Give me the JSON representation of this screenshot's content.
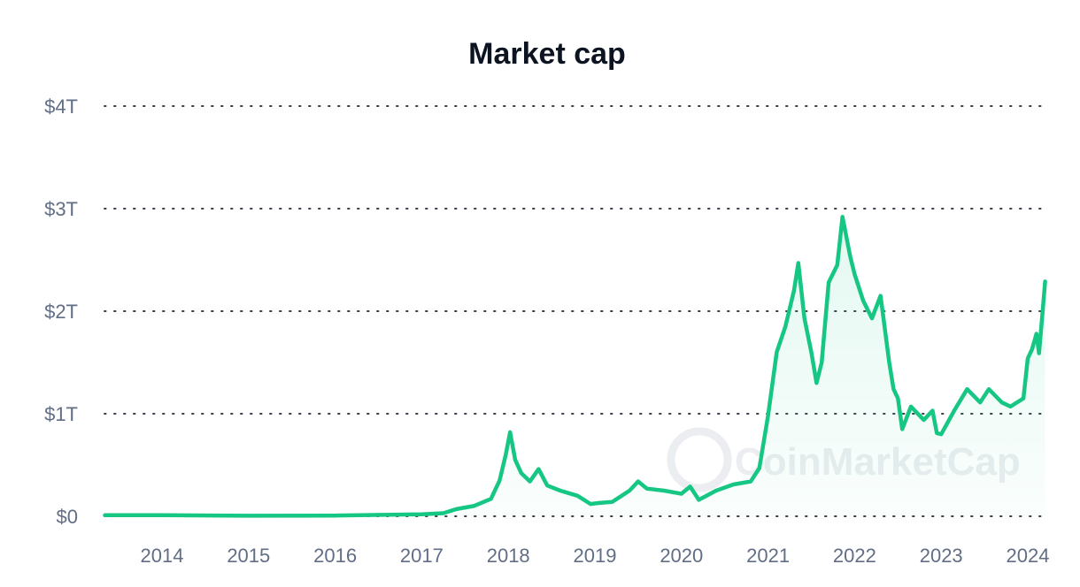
{
  "chart_data": {
    "type": "area",
    "title": "Market cap",
    "xlabel": "",
    "ylabel": "",
    "ylim": [
      0,
      4
    ],
    "y_unit": "trillion USD",
    "y_ticks": [
      {
        "value": 0,
        "label": "$0"
      },
      {
        "value": 1,
        "label": "$1T"
      },
      {
        "value": 2,
        "label": "$2T"
      },
      {
        "value": 3,
        "label": "$3T"
      },
      {
        "value": 4,
        "label": "$4T"
      }
    ],
    "x_ticks": [
      "2014",
      "2015",
      "2016",
      "2017",
      "2018",
      "2019",
      "2020",
      "2021",
      "2022",
      "2023",
      "2024"
    ],
    "xlim": [
      2013.34,
      2024.2
    ],
    "grid": true,
    "watermark": "CoinMarketCap",
    "line_color": "#16c784",
    "series": [
      {
        "name": "Market cap",
        "x": [
          2013.34,
          2014.0,
          2015.0,
          2016.0,
          2017.0,
          2017.25,
          2017.4,
          2017.6,
          2017.8,
          2017.9,
          2017.97,
          2018.02,
          2018.08,
          2018.15,
          2018.25,
          2018.35,
          2018.45,
          2018.6,
          2018.8,
          2018.95,
          2019.05,
          2019.2,
          2019.4,
          2019.5,
          2019.6,
          2019.8,
          2020.0,
          2020.1,
          2020.2,
          2020.4,
          2020.6,
          2020.8,
          2020.9,
          2021.0,
          2021.1,
          2021.2,
          2021.3,
          2021.35,
          2021.42,
          2021.5,
          2021.56,
          2021.62,
          2021.7,
          2021.8,
          2021.86,
          2021.95,
          2022.0,
          2022.1,
          2022.2,
          2022.3,
          2022.4,
          2022.45,
          2022.5,
          2022.55,
          2022.65,
          2022.8,
          2022.9,
          2022.95,
          2023.0,
          2023.15,
          2023.3,
          2023.45,
          2023.55,
          2023.7,
          2023.8,
          2023.95,
          2024.0,
          2024.05,
          2024.1,
          2024.13,
          2024.17,
          2024.2
        ],
        "values": [
          0.01,
          0.01,
          0.005,
          0.007,
          0.02,
          0.03,
          0.07,
          0.1,
          0.17,
          0.35,
          0.6,
          0.82,
          0.55,
          0.42,
          0.34,
          0.46,
          0.3,
          0.25,
          0.2,
          0.12,
          0.13,
          0.14,
          0.25,
          0.34,
          0.27,
          0.25,
          0.22,
          0.29,
          0.16,
          0.25,
          0.31,
          0.34,
          0.47,
          0.98,
          1.6,
          1.85,
          2.2,
          2.47,
          1.93,
          1.6,
          1.3,
          1.5,
          2.28,
          2.45,
          2.92,
          2.53,
          2.36,
          2.1,
          1.93,
          2.15,
          1.5,
          1.24,
          1.15,
          0.85,
          1.07,
          0.94,
          1.03,
          0.81,
          0.8,
          1.03,
          1.24,
          1.11,
          1.24,
          1.11,
          1.07,
          1.15,
          1.54,
          1.63,
          1.78,
          1.59,
          1.98,
          2.29
        ]
      }
    ]
  }
}
